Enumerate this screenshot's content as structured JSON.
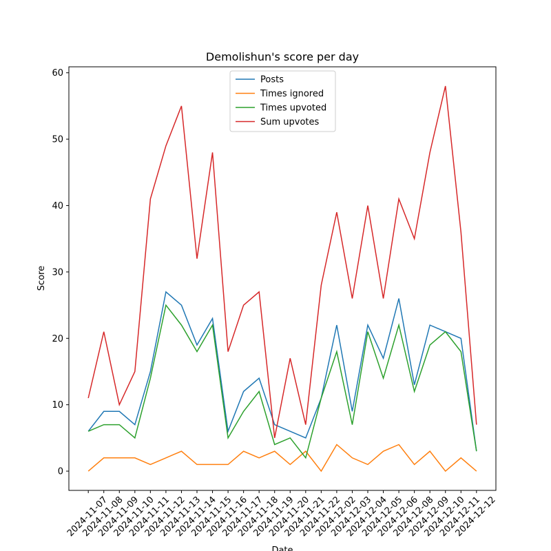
{
  "chart_data": {
    "type": "line",
    "title": "Demolishun's score per day",
    "xlabel": "Date",
    "ylabel": "Score",
    "categories": [
      "2024-11-07",
      "2024-11-08",
      "2024-11-09",
      "2024-11-10",
      "2024-11-11",
      "2024-11-12",
      "2024-11-13",
      "2024-11-14",
      "2024-11-15",
      "2024-11-16",
      "2024-11-17",
      "2024-11-18",
      "2024-11-19",
      "2024-11-20",
      "2024-11-21",
      "2024-11-22",
      "2024-12-02",
      "2024-12-03",
      "2024-12-04",
      "2024-12-05",
      "2024-12-06",
      "2024-12-08",
      "2024-12-09",
      "2024-12-10",
      "2024-12-11",
      "2024-12-12"
    ],
    "series": [
      {
        "name": "Posts",
        "color": "#1f77b4",
        "values": [
          6,
          9,
          9,
          7,
          15,
          27,
          25,
          19,
          23,
          6,
          12,
          14,
          7,
          6,
          5,
          11,
          22,
          9,
          22,
          17,
          26,
          13,
          22,
          21,
          20,
          3
        ]
      },
      {
        "name": "Times ignored",
        "color": "#ff7f0e",
        "values": [
          0,
          2,
          2,
          2,
          1,
          2,
          3,
          1,
          1,
          1,
          3,
          2,
          3,
          1,
          3,
          0,
          4,
          2,
          1,
          3,
          4,
          1,
          3,
          0,
          2,
          0
        ]
      },
      {
        "name": "Times upvoted",
        "color": "#2ca02c",
        "values": [
          6,
          7,
          7,
          5,
          14,
          25,
          22,
          18,
          22,
          5,
          9,
          12,
          4,
          5,
          2,
          11,
          18,
          7,
          21,
          14,
          22,
          12,
          19,
          21,
          18,
          3
        ]
      },
      {
        "name": "Sum upvotes",
        "color": "#d62728",
        "values": [
          11,
          21,
          10,
          15,
          41,
          49,
          55,
          32,
          48,
          18,
          25,
          27,
          5,
          17,
          7,
          28,
          39,
          26,
          40,
          26,
          41,
          35,
          48,
          58,
          36,
          7
        ]
      }
    ],
    "ylim": [
      -2.9,
      60.9
    ],
    "yticks": [
      0,
      10,
      20,
      30,
      40,
      50,
      60
    ],
    "legend": "upper center",
    "grid": false
  }
}
